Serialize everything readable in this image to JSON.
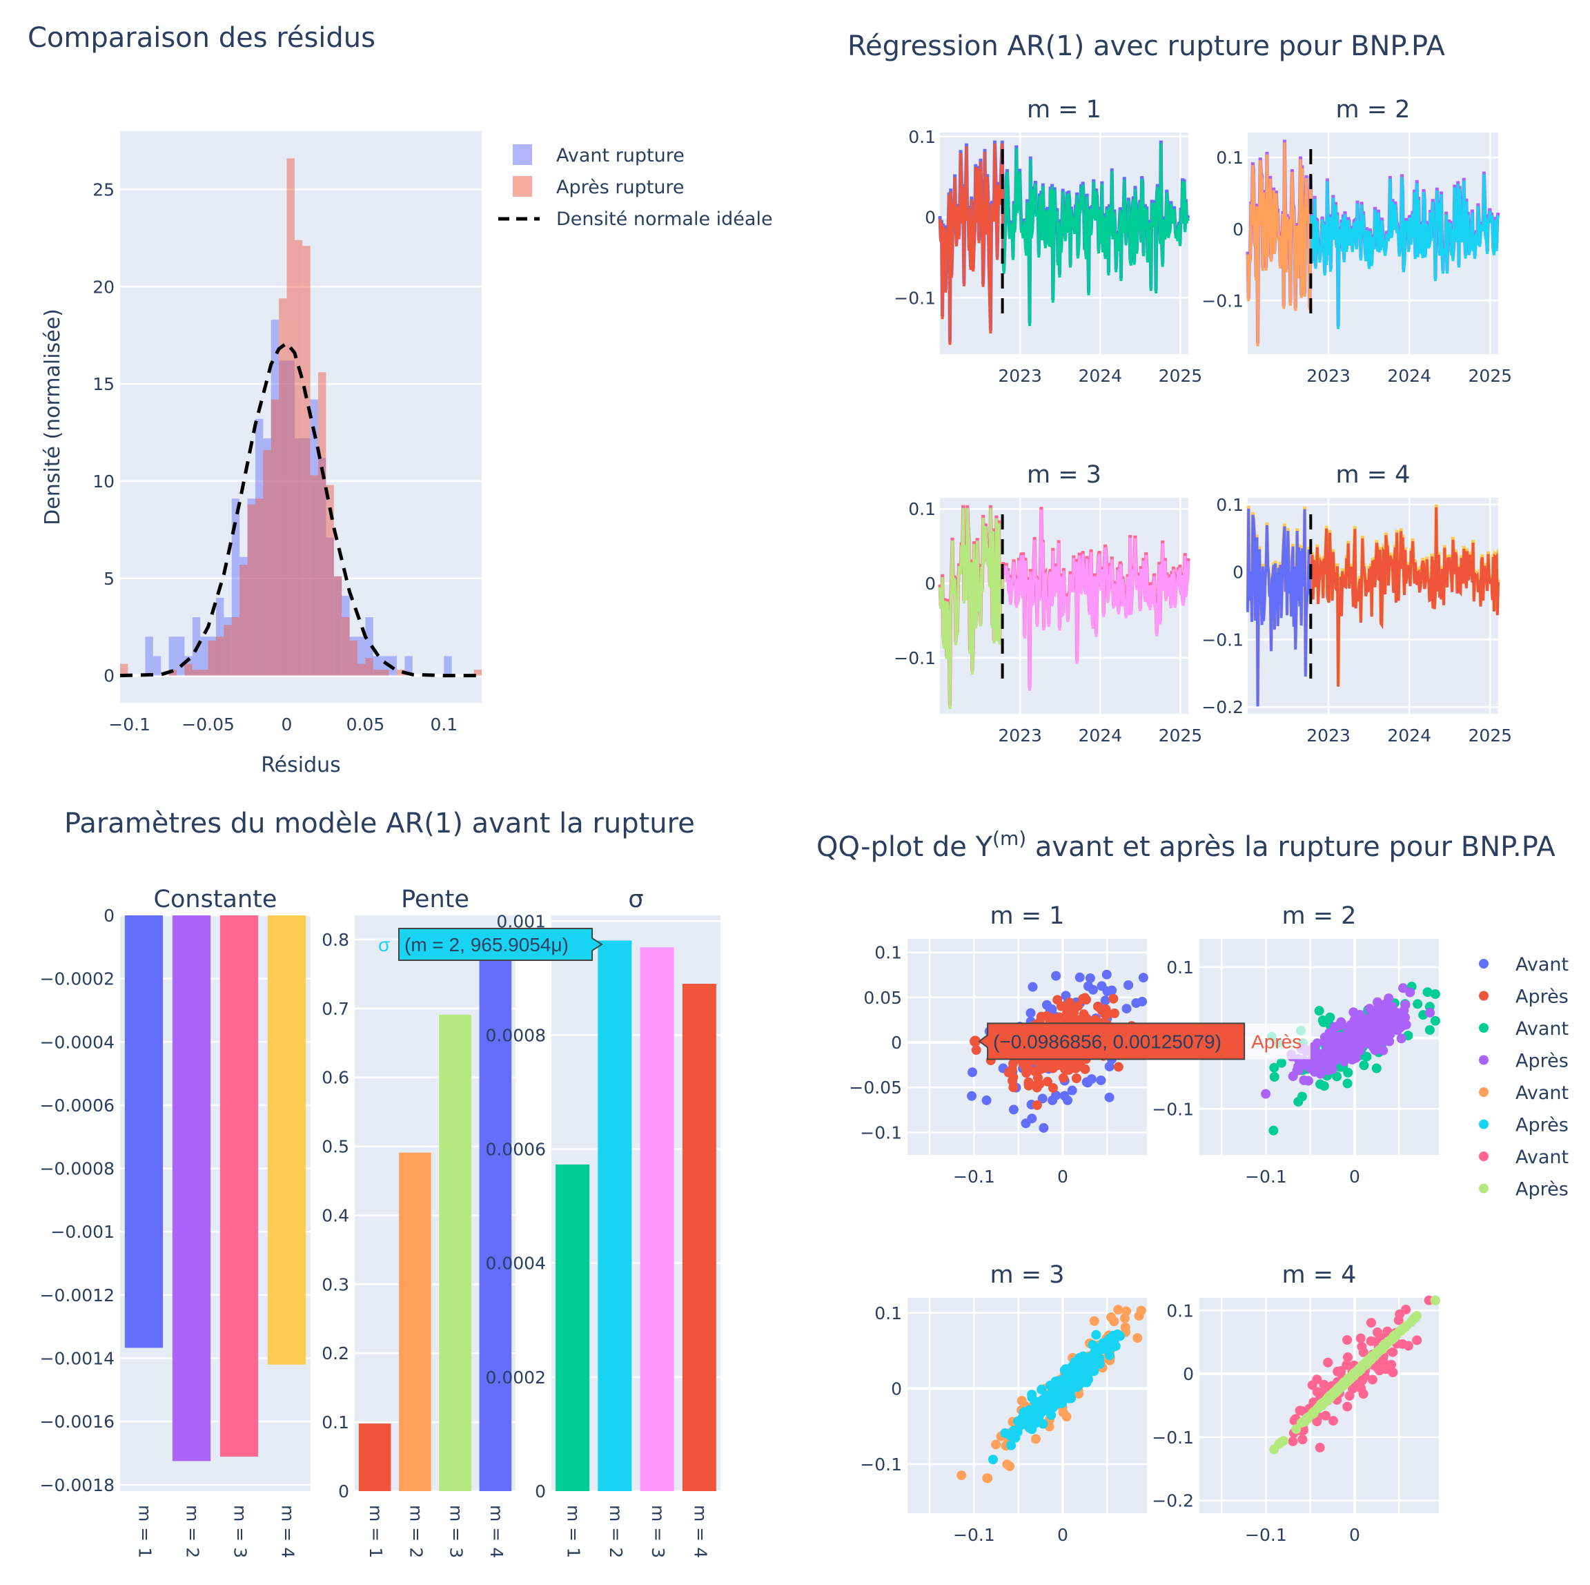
{
  "colors": {
    "plotly_blue": "#636efa",
    "plotly_red": "#ef553b",
    "plotly_green": "#00cc96",
    "plotly_purple": "#ab63fa",
    "plotly_orange": "#ffa15a",
    "plotly_cyan": "#19d3f3",
    "plotly_pink": "#ff6692",
    "plotly_lime": "#b6e880",
    "plotly_yellow": "#fecb52",
    "text": "#2a3f5f",
    "plot_bg": "#e5ecf6"
  },
  "chart_data": [
    {
      "id": "residus",
      "type": "bar",
      "title": "Comparaison des résidus",
      "xlabel": "Résidus",
      "ylabel": "Densité (normalisée)",
      "xlim": [
        -0.106,
        0.124
      ],
      "ylim": [
        -1.4,
        28
      ],
      "xticks": [
        -0.1,
        -0.05,
        0,
        0.05,
        0.1
      ],
      "xtick_labels": [
        "−0.1",
        "−0.05",
        "0",
        "0.05",
        "0.1"
      ],
      "yticks": [
        0,
        5,
        10,
        15,
        20,
        25
      ],
      "ytick_labels": [
        "0",
        "5",
        "10",
        "15",
        "20",
        "25"
      ],
      "grid": true,
      "legend_position": "top-right-outside",
      "legend": [
        {
          "label": "Avant rupture",
          "kind": "bar",
          "color": "#636efa"
        },
        {
          "label": "Après rupture",
          "kind": "bar",
          "color": "#ef553b"
        },
        {
          "label": "Densité normale idéale",
          "kind": "dash",
          "color": "#000000"
        }
      ],
      "bin_width": 0.005,
      "series": [
        {
          "name": "Avant rupture",
          "color": "#636efa",
          "opacity": 0.45,
          "bins_start": [
            -0.09,
            -0.085,
            -0.075,
            -0.07,
            -0.065,
            -0.06,
            -0.055,
            -0.05,
            -0.045,
            -0.04,
            -0.035,
            -0.03,
            -0.025,
            -0.02,
            -0.015,
            -0.01,
            -0.005,
            0.0,
            0.005,
            0.01,
            0.015,
            0.02,
            0.025,
            0.03,
            0.035,
            0.04,
            0.045,
            0.05,
            0.055,
            0.06,
            0.065,
            0.075,
            0.1
          ],
          "values": [
            2.0,
            1.0,
            2.0,
            2.0,
            1.0,
            3.0,
            2.0,
            2.0,
            4.0,
            3.0,
            9.1,
            6.1,
            9.1,
            13.2,
            12.2,
            18.3,
            16.2,
            16.2,
            12.2,
            12.2,
            14.2,
            11.2,
            7.1,
            5.1,
            4.1,
            2.0,
            2.0,
            3.0,
            1.0,
            1.0,
            1.0,
            1.0,
            1.0
          ]
        },
        {
          "name": "Après rupture",
          "color": "#ef553b",
          "opacity": 0.45,
          "bins_start": [
            -0.106,
            -0.075,
            -0.065,
            -0.06,
            -0.055,
            -0.05,
            -0.045,
            -0.04,
            -0.035,
            -0.03,
            -0.025,
            -0.02,
            -0.015,
            -0.01,
            -0.005,
            0.0,
            0.005,
            0.01,
            0.015,
            0.02,
            0.025,
            0.03,
            0.035,
            0.04,
            0.045,
            0.05,
            0.055,
            0.06,
            0.07,
            0.119
          ],
          "values": [
            0.6,
            0.3,
            0.6,
            0.3,
            0.3,
            1.8,
            2.0,
            2.6,
            3.0,
            5.7,
            8.8,
            9.1,
            11.6,
            14.2,
            19.4,
            26.6,
            22.4,
            22.1,
            10.3,
            15.6,
            9.8,
            5.1,
            3.0,
            1.8,
            0.6,
            0.9,
            0.3,
            0.3,
            0.3,
            0.3
          ]
        },
        {
          "name": "Densité normale idéale",
          "color": "#000000",
          "dash": true,
          "x": [
            -0.106,
            -0.08,
            -0.07,
            -0.06,
            -0.05,
            -0.04,
            -0.03,
            -0.02,
            -0.01,
            -0.005,
            0.0,
            0.005,
            0.01,
            0.02,
            0.03,
            0.04,
            0.05,
            0.06,
            0.07,
            0.08,
            0.1,
            0.124
          ],
          "y": [
            0.0,
            0.05,
            0.3,
            1.0,
            2.5,
            5.2,
            8.9,
            12.9,
            16.0,
            16.8,
            17.1,
            16.6,
            15.2,
            11.6,
            7.6,
            4.3,
            2.0,
            0.8,
            0.25,
            0.05,
            0.0,
            0.0
          ]
        }
      ]
    },
    {
      "id": "ar1_regression",
      "type": "line",
      "title": "Régression AR(1) avec rupture pour BNP.PA",
      "xtick_labels": [
        "2023",
        "2024",
        "2025"
      ],
      "break_date": "2022-10",
      "panels": [
        {
          "subtitle": "m = 1",
          "ylim": [
            -0.17,
            0.105
          ],
          "yticks": [
            -0.1,
            0,
            0.1
          ],
          "ytick_labels": [
            "−0.1",
            "0",
            "0.1"
          ],
          "before_colors": [
            "#636efa",
            "#ef553b"
          ],
          "after_colors": [
            "#636efa",
            "#00cc96"
          ],
          "amplitude": 0.04,
          "min_spike": -0.155
        },
        {
          "subtitle": "m = 2",
          "ylim": [
            -0.175,
            0.135
          ],
          "yticks": [
            -0.1,
            0,
            0.1
          ],
          "ytick_labels": [
            "−0.1",
            "0",
            "0.1"
          ],
          "before_colors": [
            "#ab63fa",
            "#ffa15a"
          ],
          "after_colors": [
            "#ab63fa",
            "#19d3f3"
          ],
          "amplitude": 0.04,
          "min_spike": -0.16
        },
        {
          "subtitle": "m = 3",
          "ylim": [
            -0.175,
            0.115
          ],
          "yticks": [
            -0.1,
            0,
            0.1
          ],
          "ytick_labels": [
            "−0.1",
            "0",
            "0.1"
          ],
          "before_colors": [
            "#ff6692",
            "#b6e880"
          ],
          "after_colors": [
            "#ff6692",
            "#ff97ff"
          ],
          "amplitude": 0.04,
          "min_spike": -0.165
        },
        {
          "subtitle": "m = 4",
          "ylim": [
            -0.21,
            0.11
          ],
          "yticks": [
            -0.2,
            -0.1,
            0,
            0.1
          ],
          "ytick_labels": [
            "−0.2",
            "−0.1",
            "0",
            "0.1"
          ],
          "before_colors": [
            "#fecb52",
            "#636efa"
          ],
          "after_colors": [
            "#fecb52",
            "#ef553b"
          ],
          "amplitude": 0.04,
          "min_spike": -0.195
        }
      ]
    },
    {
      "id": "ar1_params",
      "type": "bar",
      "title": "Paramètres du modèle AR(1) avant la rupture",
      "categories": [
        "m = 1",
        "m = 2",
        "m = 3",
        "m = 4"
      ],
      "panels": [
        {
          "subtitle": "Constante",
          "values": [
            -0.001367,
            -0.001725,
            -0.001711,
            -0.00142
          ],
          "colors": [
            "#636efa",
            "#ab63fa",
            "#ff6692",
            "#fecb52"
          ],
          "ylim": [
            -0.00182,
            0
          ],
          "yticks": [
            0,
            -0.0002,
            -0.0004,
            -0.0006,
            -0.0008,
            -0.001,
            -0.0012,
            -0.0014,
            -0.0016,
            -0.0018
          ],
          "ytick_labels": [
            "0",
            "−0.0002",
            "−0.0004",
            "−0.0006",
            "−0.0008",
            "−0.001",
            "−0.0012",
            "−0.0014",
            "−0.0016",
            "−0.0018"
          ]
        },
        {
          "subtitle": "Pente",
          "values": [
            0.098,
            0.491,
            0.691,
            0.81
          ],
          "colors": [
            "#ef553b",
            "#ffa15a",
            "#b6e880",
            "#636efa"
          ],
          "ylim": [
            0,
            0.835
          ],
          "yticks": [
            0,
            0.1,
            0.2,
            0.3,
            0.4,
            0.5,
            0.6,
            0.7,
            0.8
          ],
          "ytick_labels": [
            "0",
            "0.1",
            "0.2",
            "0.3",
            "0.4",
            "0.5",
            "0.6",
            "0.7",
            "0.8"
          ]
        },
        {
          "subtitle": "σ",
          "values": [
            0.000573,
            0.0009659054,
            0.000954,
            0.00089
          ],
          "colors": [
            "#00cc96",
            "#19d3f3",
            "#ff97ff",
            "#ef553b"
          ],
          "ylim": [
            0,
            0.00101
          ],
          "yticks": [
            0,
            0.0002,
            0.0004,
            0.0006,
            0.0008,
            0.001
          ],
          "ytick_labels": [
            "0",
            "0.0002",
            "0.0004",
            "0.0006",
            "0.0008",
            "0.001"
          ]
        }
      ],
      "tooltip": {
        "series": "σ",
        "text": "(m = 2, 965.9054μ)",
        "color": "#19d3f3"
      }
    },
    {
      "id": "qqplot",
      "type": "scatter",
      "title_prefix": "QQ-plot de Y",
      "title_sup": "(m)",
      "title_suffix": " avant et après la rupture pour BNP.PA",
      "legend_position": "right",
      "legend": [
        {
          "label": "Avant",
          "color": "#636efa"
        },
        {
          "label": "Après",
          "color": "#ef553b"
        },
        {
          "label": "Avant",
          "color": "#00cc96"
        },
        {
          "label": "Après",
          "color": "#ab63fa"
        },
        {
          "label": "Avant",
          "color": "#ffa15a"
        },
        {
          "label": "Après",
          "color": "#19d3f3"
        },
        {
          "label": "Avant",
          "color": "#ff6692"
        },
        {
          "label": "Après",
          "color": "#b6e880"
        }
      ],
      "panels": [
        {
          "subtitle": "m = 1",
          "xlim": [
            -0.175,
            0.095
          ],
          "ylim": [
            -0.125,
            0.115
          ],
          "xticks": [
            -0.1,
            0
          ],
          "xtick_labels": [
            "−0.1",
            "0"
          ],
          "yticks": [
            -0.1,
            -0.05,
            0,
            0.05,
            0.1
          ],
          "ytick_labels": [
            "−0.1",
            "−0.05",
            "0",
            "0.05",
            "0.1"
          ],
          "avant_color": "#636efa",
          "apres_color": "#ef553b",
          "spread_avant": 0.035,
          "spread_apres": 0.018,
          "slope": 0.3
        },
        {
          "subtitle": "m = 2",
          "xlim": [
            -0.175,
            0.095
          ],
          "ylim": [
            -0.165,
            0.14
          ],
          "xticks": [
            -0.1,
            0
          ],
          "xtick_labels": [
            "−0.1",
            "0"
          ],
          "yticks": [
            -0.1,
            0,
            0.1
          ],
          "ytick_labels": [
            "−0.1",
            "0",
            "0.1"
          ],
          "avant_color": "#00cc96",
          "apres_color": "#ab63fa",
          "spread_avant": 0.03,
          "spread_apres": 0.015,
          "slope": 0.6
        },
        {
          "subtitle": "m = 3",
          "xlim": [
            -0.175,
            0.095
          ],
          "ylim": [
            -0.165,
            0.12
          ],
          "xticks": [
            -0.1,
            0
          ],
          "xtick_labels": [
            "−0.1",
            "0"
          ],
          "yticks": [
            -0.1,
            0,
            0.1
          ],
          "ytick_labels": [
            "−0.1",
            "0",
            "0.1"
          ],
          "avant_color": "#ffa15a",
          "apres_color": "#19d3f3",
          "spread_avant": 0.018,
          "spread_apres": 0.01,
          "slope": 1.1
        },
        {
          "subtitle": "m = 4",
          "xlim": [
            -0.175,
            0.095
          ],
          "ylim": [
            -0.22,
            0.12
          ],
          "xticks": [
            -0.1,
            0
          ],
          "xtick_labels": [
            "−0.1",
            "0"
          ],
          "yticks": [
            -0.2,
            -0.1,
            0,
            0.1
          ],
          "ytick_labels": [
            "−0.2",
            "−0.1",
            "0",
            "0.1"
          ],
          "avant_color": "#ff6692",
          "apres_color": "#b6e880",
          "spread_avant": 0.025,
          "spread_apres": 0.001,
          "slope": 1.25
        }
      ],
      "tooltip": {
        "text": "(−0.0986856, 0.00125079)",
        "series": "Après",
        "point": [
          -0.0986856,
          0.00125079
        ],
        "color": "#ef553b"
      }
    }
  ]
}
